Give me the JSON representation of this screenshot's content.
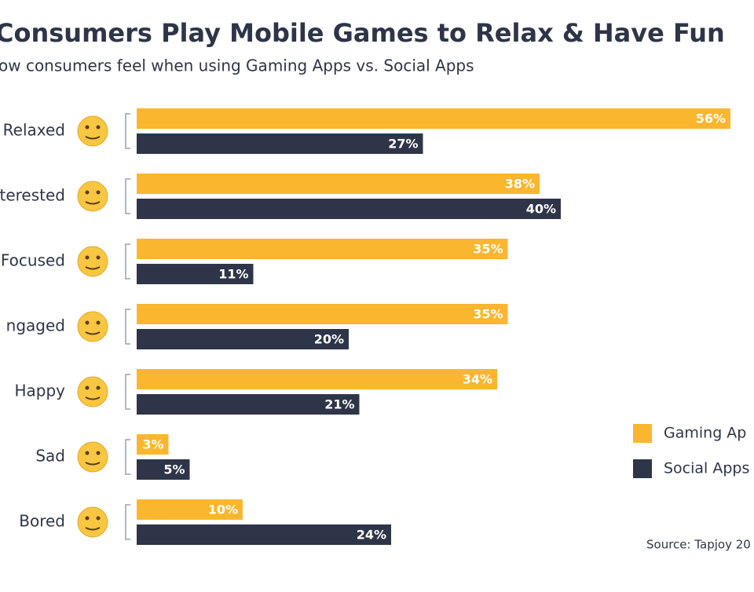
{
  "chart_data": {
    "type": "bar",
    "orientation": "horizontal",
    "title": "Consumers Play Mobile Games to Relax & Have Fun",
    "subtitle": "ow consumers feel when using Gaming Apps vs. Social Apps",
    "categories": [
      "Relaxed",
      "terested",
      "Focused",
      "ngaged",
      "Happy",
      "Sad",
      "Bored"
    ],
    "series": [
      {
        "name": "Gaming Ap",
        "color": "#fbb62f",
        "values": [
          56,
          38,
          35,
          35,
          34,
          3,
          10
        ],
        "value_labels": [
          "56%",
          "38%",
          "35%",
          "35%",
          "34%",
          "3%",
          "10%"
        ]
      },
      {
        "name": "Social Apps",
        "color": "#2e3548",
        "values": [
          27,
          40,
          11,
          20,
          21,
          5,
          24
        ],
        "value_labels": [
          "27%",
          "40%",
          "11%",
          "20%",
          "21%",
          "5%",
          "24%"
        ]
      }
    ],
    "source": "Source: Tapjoy 20"
  }
}
